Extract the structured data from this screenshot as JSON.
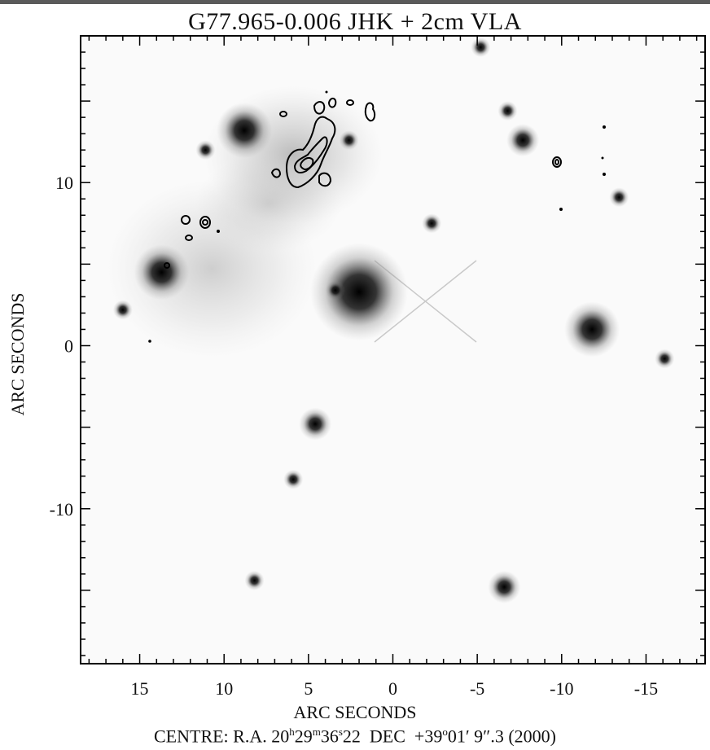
{
  "title": "G77.965-0.006 JHK + 2cm VLA",
  "x_axis_label": "ARC SECONDS",
  "y_axis_label": "ARC SECONDS",
  "caption": {
    "prefix": "CENTRE:  R.A. 20",
    "ra_h_unit": "h",
    "ra_m": "29",
    "ra_m_unit": "m",
    "ra_s": "36",
    "ra_s_unit": "s",
    "ra_s_frac": "22",
    "dec_prefix": "  DEC  +39",
    "dec_deg_unit": "o",
    "dec_rest": "01′ 9″.3  (2000)"
  },
  "x_ticks": [
    "15",
    "10",
    "5",
    "0",
    "-5",
    "-10",
    "-15"
  ],
  "y_ticks": [
    "10",
    "0",
    "-10"
  ],
  "axes": {
    "x_range": [
      18.5,
      -18.5
    ],
    "y_range": [
      -19.5,
      19
    ],
    "x_direction": "decreasing-right"
  },
  "image": {
    "type": "near-infrared greyscale image with 2cm radio contour overlay",
    "colormap": "inverted grey (stars dark on white)",
    "stars": [
      {
        "x": 2.0,
        "y": 3.3,
        "bright": "high"
      },
      {
        "x": 13.7,
        "y": 4.5,
        "bright": "high"
      },
      {
        "x": 8.8,
        "y": 13.2,
        "bright": "high"
      },
      {
        "x": -11.8,
        "y": 1.0,
        "bright": "high"
      },
      {
        "x": -6.6,
        "y": -14.8,
        "bright": "medium"
      },
      {
        "x": -7.7,
        "y": 12.6,
        "bright": "medium"
      },
      {
        "x": 4.6,
        "y": -4.8,
        "bright": "medium"
      },
      {
        "x": 5.9,
        "y": -8.2,
        "bright": "low"
      },
      {
        "x": 3.4,
        "y": 3.4,
        "bright": "low"
      },
      {
        "x": 16.0,
        "y": 2.2,
        "bright": "low"
      },
      {
        "x": -2.3,
        "y": 7.5,
        "bright": "low"
      },
      {
        "x": -13.4,
        "y": 9.1,
        "bright": "low"
      },
      {
        "x": -16.1,
        "y": -0.8,
        "bright": "low"
      },
      {
        "x": -6.8,
        "y": 14.4,
        "bright": "low"
      },
      {
        "x": 11.1,
        "y": 12.0,
        "bright": "low"
      },
      {
        "x": 2.6,
        "y": 12.6,
        "bright": "low"
      },
      {
        "x": 8.2,
        "y": -14.4,
        "bright": "low"
      },
      {
        "x": -5.2,
        "y": 18.3,
        "bright": "low"
      }
    ],
    "nebula_center": {
      "x": 6.5,
      "y": 11.0
    }
  }
}
